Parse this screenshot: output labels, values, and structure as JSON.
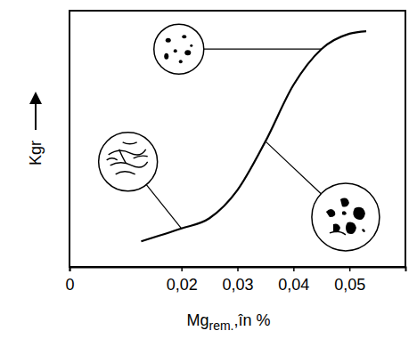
{
  "chart_data": {
    "type": "line",
    "x_label": "Mgrem.,în %",
    "y_label": "Kgr",
    "x": [
      0.0128,
      0.02,
      0.025,
      0.03,
      0.035,
      0.04,
      0.045,
      0.05,
      0.053
    ],
    "values": [
      0.1,
      0.15,
      0.19,
      0.3,
      0.49,
      0.71,
      0.85,
      0.91,
      0.92
    ],
    "color": "#000000",
    "xlim": [
      0,
      0.06
    ],
    "xticks": [
      0,
      {
        "value": 0.02,
        "label": "0,02"
      },
      {
        "value": 0.03,
        "label": "0,03"
      },
      {
        "value": 0.04,
        "label": "0,04"
      },
      {
        "value": 0.05,
        "label": "0,05"
      }
    ],
    "ylim": [
      0,
      1
    ],
    "yticks": [],
    "grid": false,
    "tick_labels": "x"
  }
}
